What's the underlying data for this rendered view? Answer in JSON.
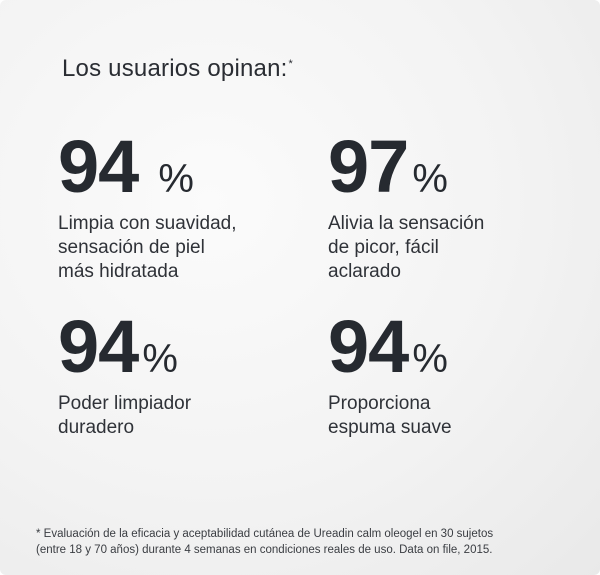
{
  "heading": {
    "text": "Los usuarios opinan:",
    "marker": "*"
  },
  "stats": [
    {
      "number": "94",
      "unit": "%",
      "description": "Limpia con suavidad,\nsensación de piel\nmás hidratada"
    },
    {
      "number": "97",
      "unit": "%",
      "description": "Alivia la sensación\nde picor, fácil\naclarado"
    },
    {
      "number": "94",
      "unit": "%",
      "description": "Poder limpiador\nduradero"
    },
    {
      "number": "94",
      "unit": "%",
      "description": "Proporciona\nespuma suave"
    }
  ],
  "footnote": "* Evaluación de la eficacia y aceptabilidad cutánea de Ureadin calm oleogel en 30 sujetos\n(entre 18 y 70 años) durante 4 semanas en condiciones reales de uso. Data on file, 2015."
}
